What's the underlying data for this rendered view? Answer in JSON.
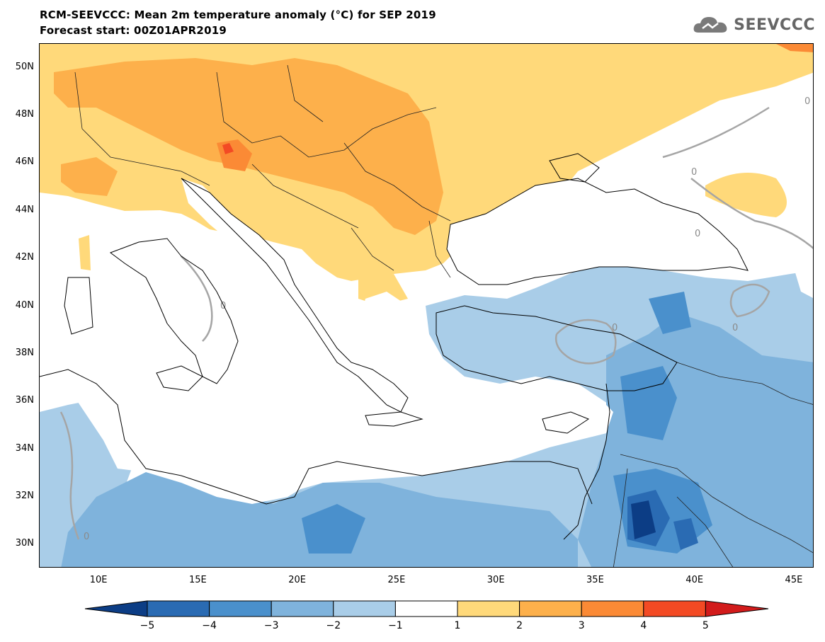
{
  "title": {
    "line1": "RCM-SEEVCCC: Mean 2m temperature anomaly (°C) for SEP 2019",
    "line2": "Forecast start: 00Z01APR2019"
  },
  "logo": {
    "text": "SEEVCCC",
    "icon": "cloud-logo-icon"
  },
  "map": {
    "lon_range": [
      7,
      46
    ],
    "lat_range": [
      29,
      51
    ],
    "contour_label": "0"
  },
  "axes": {
    "lat_labels": [
      "50N",
      "48N",
      "46N",
      "44N",
      "42N",
      "40N",
      "38N",
      "36N",
      "34N",
      "32N",
      "30N"
    ],
    "lon_labels": [
      "10E",
      "15E",
      "20E",
      "25E",
      "30E",
      "35E",
      "40E",
      "45E"
    ]
  },
  "colorbar": {
    "ticks": [
      "−5",
      "−4",
      "−3",
      "−2",
      "−1",
      "1",
      "2",
      "3",
      "4",
      "5"
    ],
    "colors": [
      "#0c3d85",
      "#2a6bb3",
      "#4a90cc",
      "#7fb3dc",
      "#a9cde8",
      "#ffffff",
      "#ffd97a",
      "#fdb04b",
      "#fb8a35",
      "#f34a24",
      "#d21b1b"
    ]
  }
}
